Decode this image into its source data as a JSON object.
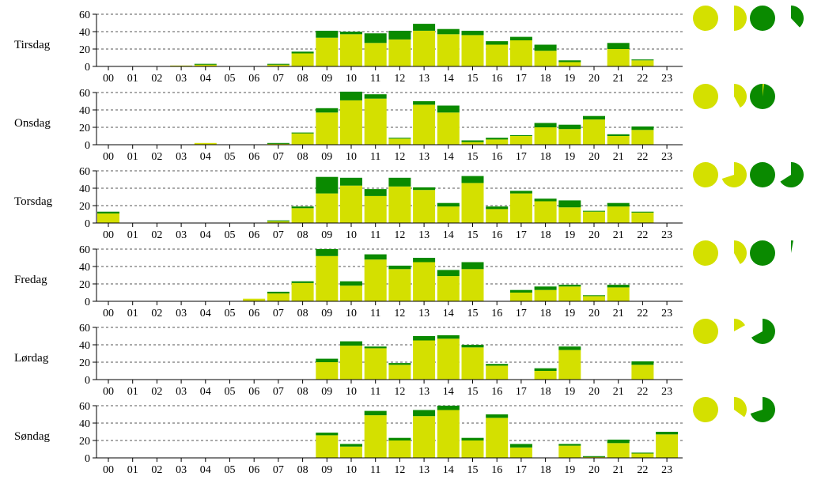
{
  "chart_data": [
    {
      "type": "bar",
      "stacked": true,
      "day": "Tirsdag",
      "categories": [
        "00",
        "01",
        "02",
        "03",
        "04",
        "05",
        "06",
        "07",
        "08",
        "09",
        "10",
        "11",
        "12",
        "13",
        "14",
        "15",
        "16",
        "17",
        "18",
        "19",
        "20",
        "21",
        "22",
        "23"
      ],
      "ylim": [
        0,
        60
      ],
      "yticks": [
        0,
        20,
        40,
        60
      ],
      "grid": true,
      "colors": {
        "base": "#d4e000",
        "top": "#0a8a00"
      },
      "series": [
        {
          "values": [
            0,
            0,
            0,
            1,
            2,
            0,
            0,
            2,
            15,
            33,
            37,
            27,
            31,
            41,
            37,
            36,
            25,
            30,
            18,
            5,
            0,
            20,
            7,
            0
          ]
        },
        {
          "values": [
            0,
            0,
            0,
            0,
            1,
            0,
            0,
            1,
            2,
            8,
            3,
            11,
            10,
            8,
            6,
            5,
            4,
            4,
            7,
            2,
            0,
            7,
            1,
            0
          ]
        }
      ],
      "pies": [
        {
          "fraction": 1.0,
          "color": "#d4e000"
        },
        {
          "fraction": 0.5,
          "color": "#d4e000"
        },
        {
          "fraction": 1.0,
          "color": "#0a8a00"
        },
        {
          "fraction": 0.38,
          "color": "#0a8a00"
        }
      ]
    },
    {
      "type": "bar",
      "stacked": true,
      "day": "Onsdag",
      "categories": [
        "00",
        "01",
        "02",
        "03",
        "04",
        "05",
        "06",
        "07",
        "08",
        "09",
        "10",
        "11",
        "12",
        "13",
        "14",
        "15",
        "16",
        "17",
        "18",
        "19",
        "20",
        "21",
        "22",
        "23"
      ],
      "ylim": [
        0,
        60
      ],
      "yticks": [
        0,
        20,
        40,
        60
      ],
      "grid": true,
      "colors": {
        "base": "#d4e000",
        "top": "#0a8a00"
      },
      "series": [
        {
          "values": [
            0,
            0,
            0,
            0,
            2,
            0,
            0,
            1,
            13,
            37,
            51,
            53,
            7,
            46,
            37,
            3,
            6,
            10,
            20,
            18,
            29,
            10,
            17,
            0
          ]
        },
        {
          "values": [
            0,
            0,
            0,
            0,
            0,
            0,
            0,
            1,
            1,
            5,
            10,
            5,
            1,
            4,
            8,
            2,
            2,
            1,
            5,
            5,
            4,
            2,
            4,
            0
          ]
        }
      ],
      "pies": [
        {
          "fraction": 1.0,
          "color": "#d4e000"
        },
        {
          "fraction": 0.42,
          "color": "#d4e000"
        },
        {
          "fraction": 1.0,
          "color": "#0a8a00",
          "sliver": 0.02,
          "sliver_color": "#d4e000"
        }
      ]
    },
    {
      "type": "bar",
      "stacked": true,
      "day": "Torsdag",
      "categories": [
        "00",
        "01",
        "02",
        "03",
        "04",
        "05",
        "06",
        "07",
        "08",
        "09",
        "10",
        "11",
        "12",
        "13",
        "14",
        "15",
        "16",
        "17",
        "18",
        "19",
        "20",
        "21",
        "22",
        "23"
      ],
      "ylim": [
        0,
        60
      ],
      "yticks": [
        0,
        20,
        40,
        60
      ],
      "grid": true,
      "colors": {
        "base": "#d4e000",
        "top": "#0a8a00"
      },
      "series": [
        {
          "values": [
            11,
            0,
            0,
            0,
            0,
            0,
            0,
            2,
            17,
            34,
            43,
            31,
            42,
            38,
            19,
            46,
            16,
            34,
            25,
            18,
            13,
            19,
            12,
            0
          ]
        },
        {
          "values": [
            2,
            0,
            0,
            0,
            0,
            0,
            0,
            1,
            2,
            19,
            9,
            8,
            10,
            3,
            4,
            8,
            3,
            3,
            3,
            8,
            1,
            4,
            1,
            0
          ]
        }
      ],
      "pies": [
        {
          "fraction": 1.0,
          "color": "#d4e000"
        },
        {
          "fraction": 0.7,
          "color": "#d4e000"
        },
        {
          "fraction": 1.0,
          "color": "#0a8a00"
        },
        {
          "fraction": 0.66,
          "color": "#0a8a00"
        }
      ]
    },
    {
      "type": "bar",
      "stacked": true,
      "day": "Fredag",
      "categories": [
        "00",
        "01",
        "02",
        "03",
        "04",
        "05",
        "06",
        "07",
        "08",
        "09",
        "10",
        "11",
        "12",
        "13",
        "14",
        "15",
        "16",
        "17",
        "18",
        "19",
        "20",
        "21",
        "22",
        "23"
      ],
      "ylim": [
        0,
        60
      ],
      "yticks": [
        0,
        20,
        40,
        60
      ],
      "grid": true,
      "colors": {
        "base": "#d4e000",
        "top": "#0a8a00"
      },
      "series": [
        {
          "values": [
            0,
            0,
            0,
            0,
            0,
            0,
            3,
            9,
            21,
            52,
            18,
            48,
            37,
            45,
            29,
            37,
            0,
            10,
            13,
            17,
            6,
            16,
            0,
            0
          ]
        },
        {
          "values": [
            0,
            0,
            0,
            0,
            0,
            0,
            0,
            2,
            2,
            8,
            5,
            6,
            4,
            5,
            7,
            8,
            0,
            3,
            4,
            2,
            1,
            3,
            0,
            0
          ]
        }
      ],
      "pies": [
        {
          "fraction": 1.0,
          "color": "#d4e000"
        },
        {
          "fraction": 0.42,
          "color": "#d4e000"
        },
        {
          "fraction": 1.0,
          "color": "#0a8a00"
        },
        {
          "fraction": 0.03,
          "color": "#0a8a00"
        }
      ]
    },
    {
      "type": "bar",
      "stacked": true,
      "day": "Lørdag",
      "categories": [
        "00",
        "01",
        "02",
        "03",
        "04",
        "05",
        "06",
        "07",
        "08",
        "09",
        "10",
        "11",
        "12",
        "13",
        "14",
        "15",
        "16",
        "17",
        "18",
        "19",
        "20",
        "21",
        "22",
        "23"
      ],
      "ylim": [
        0,
        60
      ],
      "yticks": [
        0,
        20,
        40,
        60
      ],
      "grid": true,
      "colors": {
        "base": "#d4e000",
        "top": "#0a8a00"
      },
      "series": [
        {
          "values": [
            0,
            0,
            0,
            0,
            0,
            0,
            0,
            0,
            0,
            20,
            39,
            36,
            17,
            45,
            47,
            37,
            16,
            0,
            10,
            34,
            0,
            0,
            17,
            0
          ]
        },
        {
          "values": [
            0,
            0,
            0,
            0,
            0,
            0,
            0,
            0,
            0,
            4,
            5,
            2,
            2,
            5,
            4,
            3,
            2,
            0,
            3,
            4,
            0,
            0,
            4,
            0
          ]
        }
      ],
      "pies": [
        {
          "fraction": 1.0,
          "color": "#d4e000"
        },
        {
          "fraction": 0.17,
          "color": "#d4e000"
        },
        {
          "fraction": 0.67,
          "color": "#0a8a00"
        }
      ]
    },
    {
      "type": "bar",
      "stacked": true,
      "day": "Søndag",
      "categories": [
        "00",
        "01",
        "02",
        "03",
        "04",
        "05",
        "06",
        "07",
        "08",
        "09",
        "10",
        "11",
        "12",
        "13",
        "14",
        "15",
        "16",
        "17",
        "18",
        "19",
        "20",
        "21",
        "22",
        "23"
      ],
      "ylim": [
        0,
        60
      ],
      "yticks": [
        0,
        20,
        40,
        60
      ],
      "grid": true,
      "colors": {
        "base": "#d4e000",
        "top": "#0a8a00"
      },
      "series": [
        {
          "values": [
            0,
            0,
            0,
            0,
            0,
            0,
            0,
            0,
            0,
            26,
            13,
            49,
            20,
            48,
            55,
            20,
            46,
            12,
            0,
            14,
            1,
            17,
            5,
            27
          ]
        },
        {
          "values": [
            0,
            0,
            0,
            0,
            0,
            0,
            0,
            0,
            0,
            3,
            3,
            5,
            3,
            7,
            5,
            3,
            4,
            4,
            0,
            2,
            1,
            4,
            1,
            3
          ]
        }
      ],
      "pies": [
        {
          "fraction": 1.0,
          "color": "#d4e000"
        },
        {
          "fraction": 0.35,
          "color": "#d4e000"
        },
        {
          "fraction": 0.7,
          "color": "#0a8a00"
        }
      ]
    }
  ]
}
